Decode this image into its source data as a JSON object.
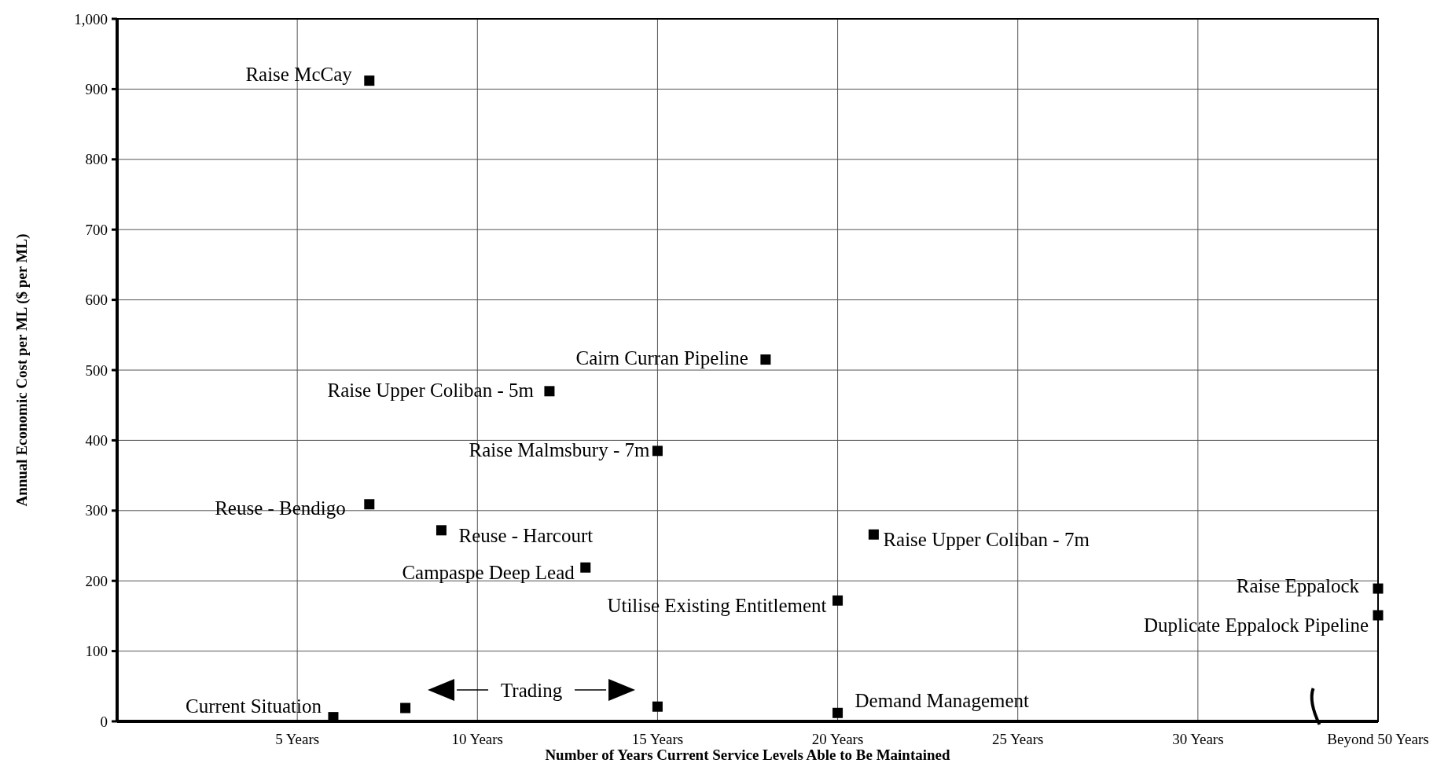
{
  "chart_data": {
    "type": "scatter",
    "xlabel": "Number of Years Current Service Levels Able to Be Maintained",
    "ylabel": "Annual Economic Cost per ML ($ per ML)",
    "x": [
      7,
      18,
      12,
      15,
      7,
      9,
      13,
      20,
      21,
      35,
      35,
      6,
      8,
      15,
      20
    ],
    "series": [
      {
        "color": "#000000",
        "values": [
          912,
          515,
          470,
          385,
          309,
          272,
          219,
          172,
          266,
          189,
          151,
          6,
          19,
          21,
          12
        ]
      }
    ],
    "xlim": [
      0,
      35
    ],
    "ylim": [
      0,
      1000
    ],
    "xticks": [
      {
        "value": 5,
        "label": "5 Years"
      },
      {
        "value": 10,
        "label": "10 Years"
      },
      {
        "value": 15,
        "label": "15 Years"
      },
      {
        "value": 20,
        "label": "20 Years"
      },
      {
        "value": 25,
        "label": "25 Years"
      },
      {
        "value": 30,
        "label": "30 Years"
      },
      {
        "value": 35,
        "label": "Beyond 50 Years"
      }
    ],
    "yticks": [
      0,
      100,
      200,
      300,
      400,
      500,
      600,
      700,
      800,
      900,
      {
        "value": 1000,
        "label": "1,000"
      }
    ],
    "grid": true,
    "marker": "square",
    "annotations": [
      {
        "text": "Raise McCay",
        "x": 7,
        "y": 912
      },
      {
        "text": "Cairn Curran Pipeline",
        "x": 18,
        "y": 515
      },
      {
        "text": "Raise Upper Coliban - 5m",
        "x": 12,
        "y": 470
      },
      {
        "text": "Raise Malmsbury - 7m",
        "x": 15,
        "y": 385
      },
      {
        "text": "Reuse - Bendigo",
        "x": 7,
        "y": 309
      },
      {
        "text": "Reuse - Harcourt",
        "x": 9,
        "y": 272
      },
      {
        "text": "Campaspe Deep Lead",
        "x": 13,
        "y": 219
      },
      {
        "text": "Utilise Existing Entitlement",
        "x": 20,
        "y": 172
      },
      {
        "text": "Raise Upper Coliban - 7m",
        "x": 21,
        "y": 266
      },
      {
        "text": "Raise Eppalock",
        "x": 35,
        "y": 189
      },
      {
        "text": "Duplicate Eppalock Pipeline",
        "x": 35,
        "y": 151
      },
      {
        "text": "Current Situation",
        "x": 6,
        "y": 6
      },
      "Trading",
      {
        "text": "Demand Management",
        "x": 20,
        "y": 12
      }
    ]
  }
}
